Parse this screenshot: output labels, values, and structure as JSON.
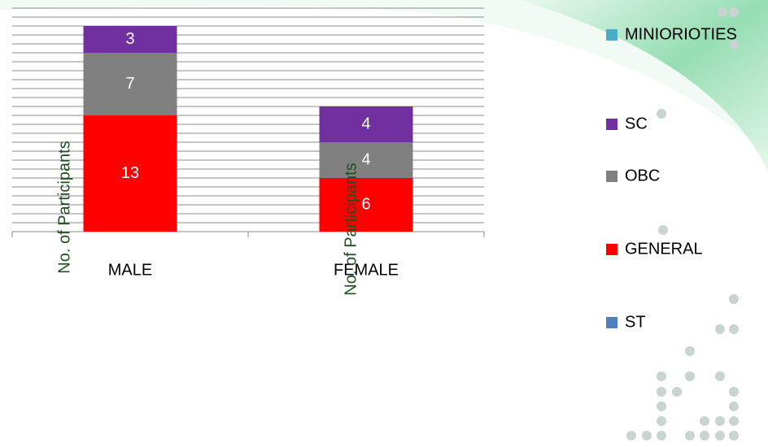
{
  "chart_data": {
    "type": "stacked_bar",
    "axis_label": "No. of Participants",
    "categories": [
      "MALE",
      "FEMALE"
    ],
    "series": [
      {
        "name": "ST",
        "color": "#4f81bd",
        "values": [
          0,
          0
        ]
      },
      {
        "name": "GENERAL",
        "color": "#ff0000",
        "values": [
          13,
          6
        ]
      },
      {
        "name": "OBC",
        "color": "#808080",
        "values": [
          7,
          4
        ]
      },
      {
        "name": "SC",
        "color": "#7030a0",
        "values": [
          3,
          4
        ]
      },
      {
        "name": "MINIORIOTIES",
        "color": "#4bacc6",
        "values": [
          0,
          0
        ]
      }
    ],
    "ylim": [
      0,
      25
    ],
    "yticks": [
      0,
      1,
      2,
      3,
      4,
      5,
      6,
      7,
      8,
      9,
      10,
      11,
      12,
      13,
      14,
      15,
      16,
      17,
      18,
      19,
      20,
      21,
      22,
      23,
      24,
      25
    ],
    "grid": true,
    "legend": "right"
  }
}
